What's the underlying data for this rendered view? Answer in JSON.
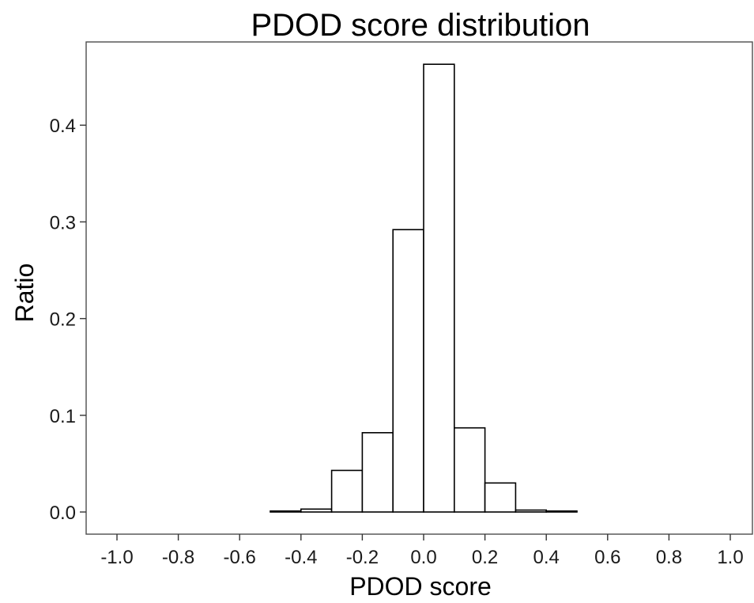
{
  "chart_data": {
    "type": "bar",
    "title": "PDOD score distribution",
    "xlabel": "PDOD score",
    "ylabel": "Ratio",
    "xlim": [
      -1.0,
      1.0
    ],
    "ylim": [
      0.0,
      0.48
    ],
    "x_ticks": [
      -1.0,
      -0.8,
      -0.6,
      -0.4,
      -0.2,
      0.0,
      0.2,
      0.4,
      0.6,
      0.8,
      1.0
    ],
    "x_tick_labels": [
      "-1.0",
      "-0.8",
      "-0.6",
      "-0.4",
      "-0.2",
      "0.0",
      "0.2",
      "0.4",
      "0.6",
      "0.8",
      "1.0"
    ],
    "y_ticks": [
      0.0,
      0.1,
      0.2,
      0.3,
      0.4
    ],
    "y_tick_labels": [
      "0.0",
      "0.1",
      "0.2",
      "0.3",
      "0.4"
    ],
    "grid": false,
    "bin_width": 0.1,
    "bin_starts": [
      -1.0,
      -0.9,
      -0.8,
      -0.7,
      -0.6,
      -0.5,
      -0.4,
      -0.3,
      -0.2,
      -0.1,
      0.0,
      0.1,
      0.2,
      0.3,
      0.4,
      0.5,
      0.6,
      0.7,
      0.8,
      0.9
    ],
    "values": [
      0.0,
      0.0,
      0.0,
      0.0,
      0.0,
      0.001,
      0.003,
      0.043,
      0.082,
      0.292,
      0.463,
      0.087,
      0.03,
      0.002,
      0.001,
      0.0,
      0.0,
      0.0,
      0.0,
      0.0
    ]
  }
}
